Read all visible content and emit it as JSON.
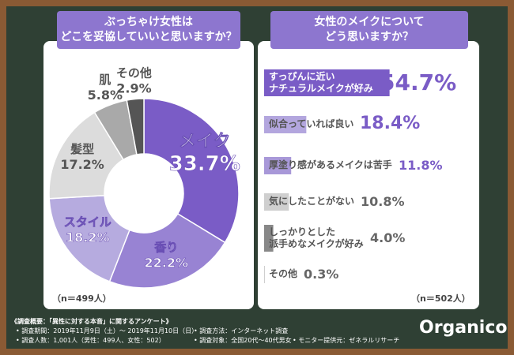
{
  "chart_data": [
    {
      "type": "donut",
      "title": "ぶっちゃけ女性は\nどこを妥協していいと思いますか？",
      "note": "（n＝499人）",
      "categories": [
        "メイク",
        "香り",
        "スタイル",
        "髪型",
        "肌",
        "その他"
      ],
      "values": [
        33.7,
        22.2,
        18.2,
        17.2,
        5.8,
        2.9
      ],
      "value_labels": [
        "33.7%",
        "22.2%",
        "18.2%",
        "17.2%",
        "5.8%",
        "2.9%"
      ],
      "colors": [
        "#7a5cc6",
        "#9883d3",
        "#b6abdf",
        "#dcdcdc",
        "#a9a9a9",
        "#555555"
      ]
    },
    {
      "type": "hbar",
      "title": "女性のメイクについて\nどう思いますか？",
      "note": "（n＝502人）",
      "categories": [
        "すっぴんに近い\nナチュラルメイクが好み",
        "似合っていれば良い",
        "厚塗り感があるメイクは苦手",
        "気にしたことがない",
        "しっかりとした\n派手めなメイクが好み",
        "その他"
      ],
      "values": [
        54.7,
        18.4,
        11.8,
        10.8,
        4.0,
        0.3
      ],
      "value_labels": [
        "54.7%",
        "18.4%",
        "11.8%",
        "10.8%",
        "4.0%",
        "0.3%"
      ],
      "colors": [
        "#7a5cc6",
        "#b3a6de",
        "#a898d8",
        "#cfcfcf",
        "#888888",
        "#c8c8c8"
      ]
    }
  ],
  "footer": {
    "heading": "《調査概要：「異性に対する本音」に関するアンケート》",
    "items": [
      "• 調査期間：2019年11月9日（土）～ 2019年11月10日（日）",
      "• 調査方法：インターネット調査",
      "• 調査人数：1,001人（男性：499人、女性：502）",
      "• 調査対象：全国20代～40代男女",
      "• モニター提供元：ゼネラルリサーチ"
    ]
  },
  "logo": "Organico"
}
